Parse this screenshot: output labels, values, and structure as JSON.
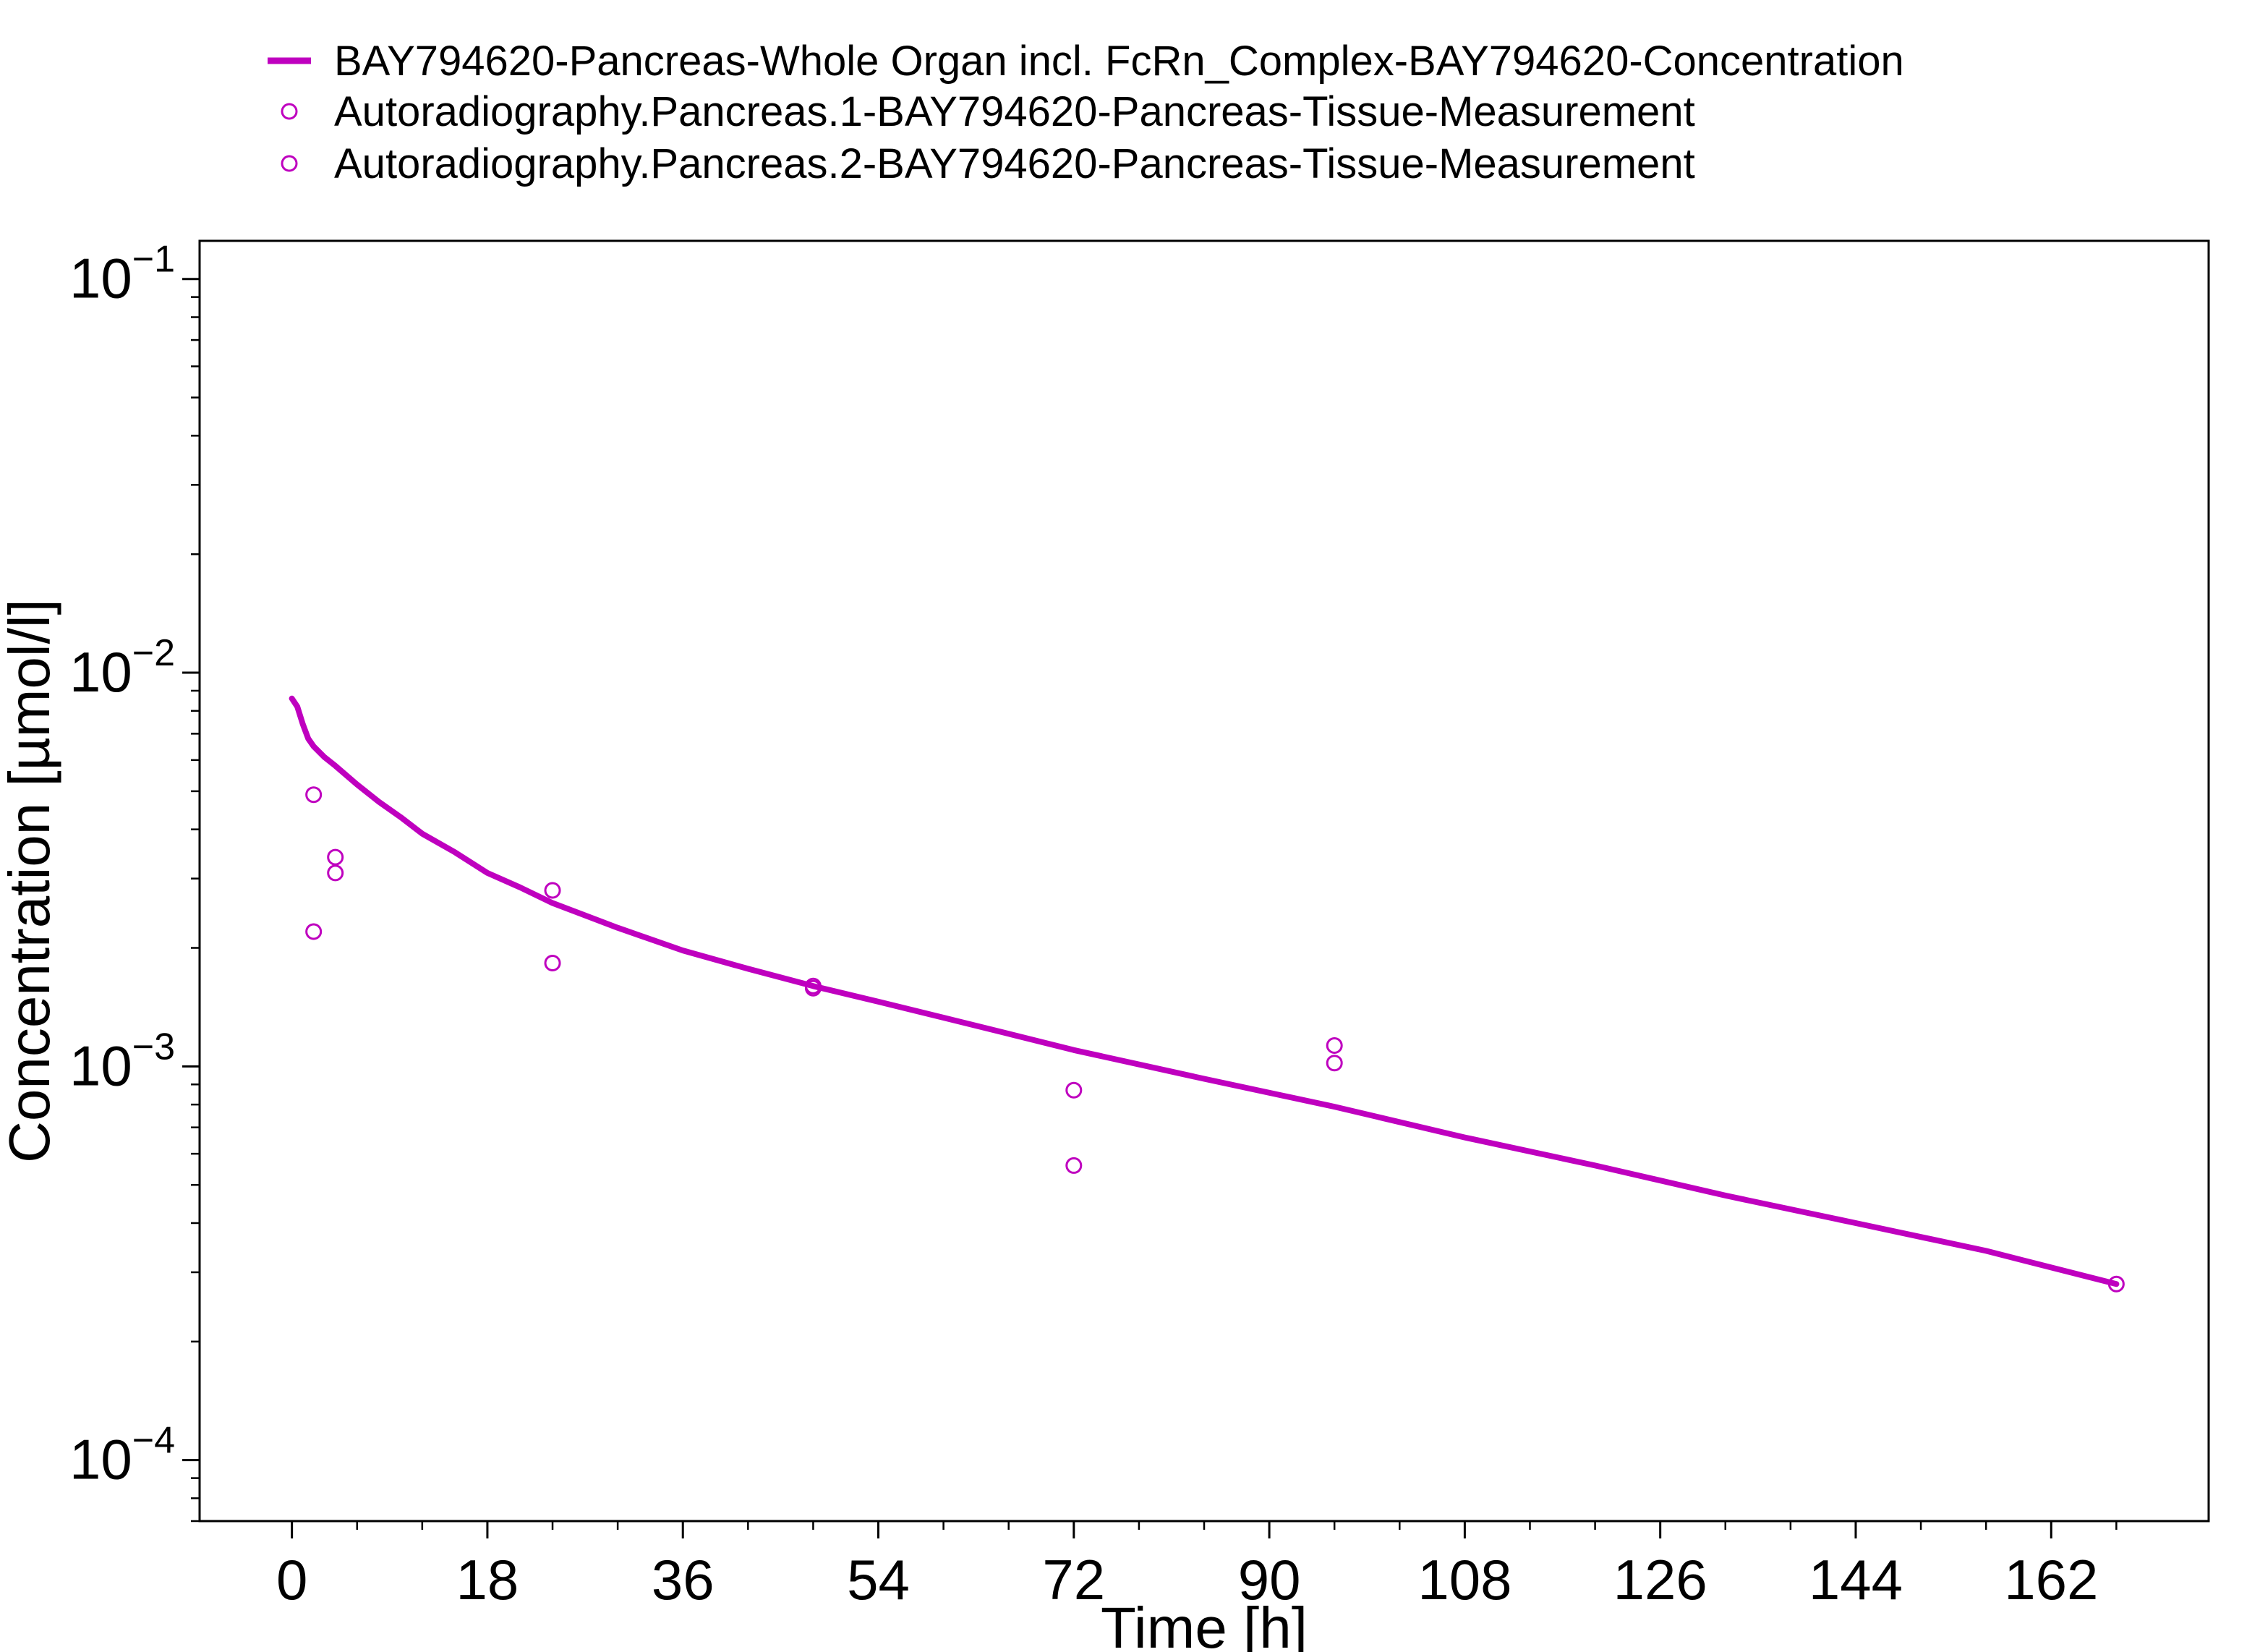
{
  "chart_data": {
    "type": "line",
    "xlabel": "Time [h]",
    "ylabel": "Concentration [µmol/l]",
    "xlim": [
      -8.5,
      176.5
    ],
    "ylim": [
      7e-05,
      0.125
    ],
    "yscale": "log",
    "grid": false,
    "legend_position": "top-outside",
    "x_ticks": [
      0,
      18,
      36,
      54,
      72,
      90,
      108,
      126,
      144,
      162
    ],
    "x_tick_labels": [
      "0",
      "18",
      "36",
      "54",
      "72",
      "90",
      "108",
      "126",
      "144",
      "162"
    ],
    "y_ticks": [
      {
        "value": 0.1,
        "base": "10",
        "exponent": "−1"
      },
      {
        "value": 0.01,
        "base": "10",
        "exponent": "−2"
      },
      {
        "value": 0.001,
        "base": "10",
        "exponent": "−3"
      },
      {
        "value": 0.0001,
        "base": "10",
        "exponent": "−4"
      }
    ],
    "series": [
      {
        "name": "BAY794620-Pancreas-Whole Organ incl. FcRn_Complex-BAY794620-Concentration",
        "kind": "line",
        "color": "#BF00BF",
        "x": [
          0,
          0.5,
          1,
          1.5,
          2,
          3,
          4,
          6,
          8,
          10,
          12,
          15,
          18,
          21,
          24,
          30,
          36,
          42,
          48,
          54,
          60,
          66,
          72,
          84,
          96,
          108,
          120,
          132,
          144,
          156,
          168
        ],
        "y": [
          0.0086,
          0.0082,
          0.0074,
          0.0068,
          0.0065,
          0.0061,
          0.0058,
          0.0052,
          0.0047,
          0.0043,
          0.0039,
          0.0035,
          0.0031,
          0.00285,
          0.0026,
          0.00225,
          0.00197,
          0.00177,
          0.0016,
          0.00146,
          0.00133,
          0.00121,
          0.0011,
          0.00093,
          0.00079,
          0.00066,
          0.00056,
          0.00047,
          0.0004,
          0.00034,
          0.00028
        ]
      },
      {
        "name": "Autoradiography.Pancreas.1-BAY794620-Pancreas-Tissue-Measurement",
        "kind": "scatter",
        "color": "#BF00BF",
        "x": [
          2,
          4,
          24,
          48,
          72,
          96,
          168
        ],
        "y": [
          0.0049,
          0.0034,
          0.0028,
          0.0016,
          0.00087,
          0.00113,
          0.00028
        ]
      },
      {
        "name": "Autoradiography.Pancreas.2-BAY794620-Pancreas-Tissue-Measurement",
        "kind": "scatter",
        "color": "#BF00BF",
        "x": [
          2,
          4,
          24,
          48,
          72,
          96
        ],
        "y": [
          0.0022,
          0.0031,
          0.00183,
          0.00158,
          0.00056,
          0.00102
        ]
      }
    ]
  }
}
